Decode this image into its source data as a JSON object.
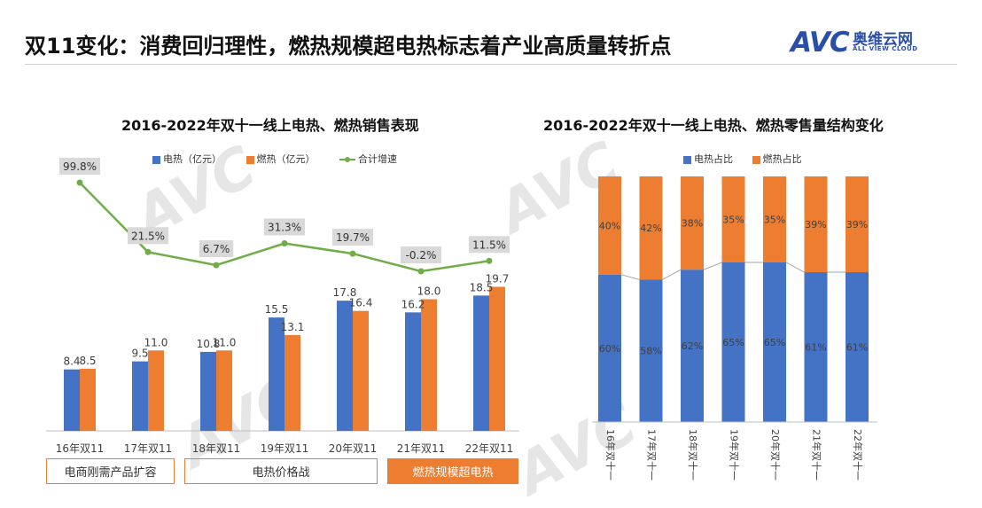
{
  "page_title": "双11变化：消费回归理性，燃热规模超电热标志着产业高质量转折点",
  "logo": {
    "brand": "AVC",
    "name_cn": "奥维云网",
    "name_en": "ALL VIEW CLOUD"
  },
  "watermark": "AVC",
  "colors": {
    "electric": "#4472c4",
    "gas": "#ed7d31",
    "growth": "#70ad47",
    "label_bg": "#d9d9d9",
    "box": "#ed7d31"
  },
  "chart_data": [
    {
      "type": "bar",
      "title": "2016-2022年双十一线上电热、燃热销售表现",
      "categories": [
        "16年双11",
        "17年双11",
        "18年双11",
        "19年双11",
        "20年双11",
        "21年双11",
        "22年双11"
      ],
      "series": [
        {
          "name": "电热（亿元）",
          "values": [
            8.4,
            9.5,
            10.8,
            15.5,
            17.8,
            16.2,
            18.5
          ],
          "data_labels": [
            "8.4",
            "9.5",
            "10.8",
            "15.5",
            "17.8",
            "16.2",
            "18.5"
          ]
        },
        {
          "name": "燃热（亿元）",
          "values": [
            8.5,
            11.0,
            11.0,
            13.1,
            16.4,
            18.0,
            19.7
          ],
          "data_labels": [
            "8.5",
            "11.0",
            "11.0",
            "13.1",
            "16.4",
            "18.0",
            "19.7"
          ]
        }
      ],
      "line_series": {
        "name": "合计增速",
        "values": [
          99.8,
          21.5,
          6.7,
          31.3,
          19.7,
          -0.2,
          11.5
        ],
        "data_labels": [
          "99.8%",
          "21.5%",
          "6.7%",
          "31.3%",
          "19.7%",
          "-0.2%",
          "11.5%"
        ]
      },
      "legend": "top",
      "grid": false
    },
    {
      "type": "bar",
      "stacked": "100%",
      "title": "2016-2022年双十一线上电热、燃热零售量结构变化",
      "categories": [
        "16年双十一",
        "17年双十一",
        "18年双十一",
        "19年双十一",
        "20年双十一",
        "21年双十一",
        "22年双十一"
      ],
      "series": [
        {
          "name": "电热占比",
          "values": [
            60,
            58,
            62,
            65,
            65,
            61,
            61
          ],
          "data_labels": [
            "60%",
            "58%",
            "62%",
            "65%",
            "65%",
            "61%",
            "61%"
          ]
        },
        {
          "name": "燃热占比",
          "values": [
            40,
            42,
            38,
            35,
            35,
            39,
            39
          ],
          "data_labels": [
            "40%",
            "42%",
            "38%",
            "35%",
            "35%",
            "39%",
            "39%"
          ]
        }
      ],
      "legend": "top",
      "grid": false
    }
  ],
  "phase_boxes": [
    {
      "label": "电商刚需产品扩容",
      "filled": false
    },
    {
      "label": "电热价格战",
      "filled": false
    },
    {
      "label": "燃热规模超电热",
      "filled": true
    }
  ]
}
